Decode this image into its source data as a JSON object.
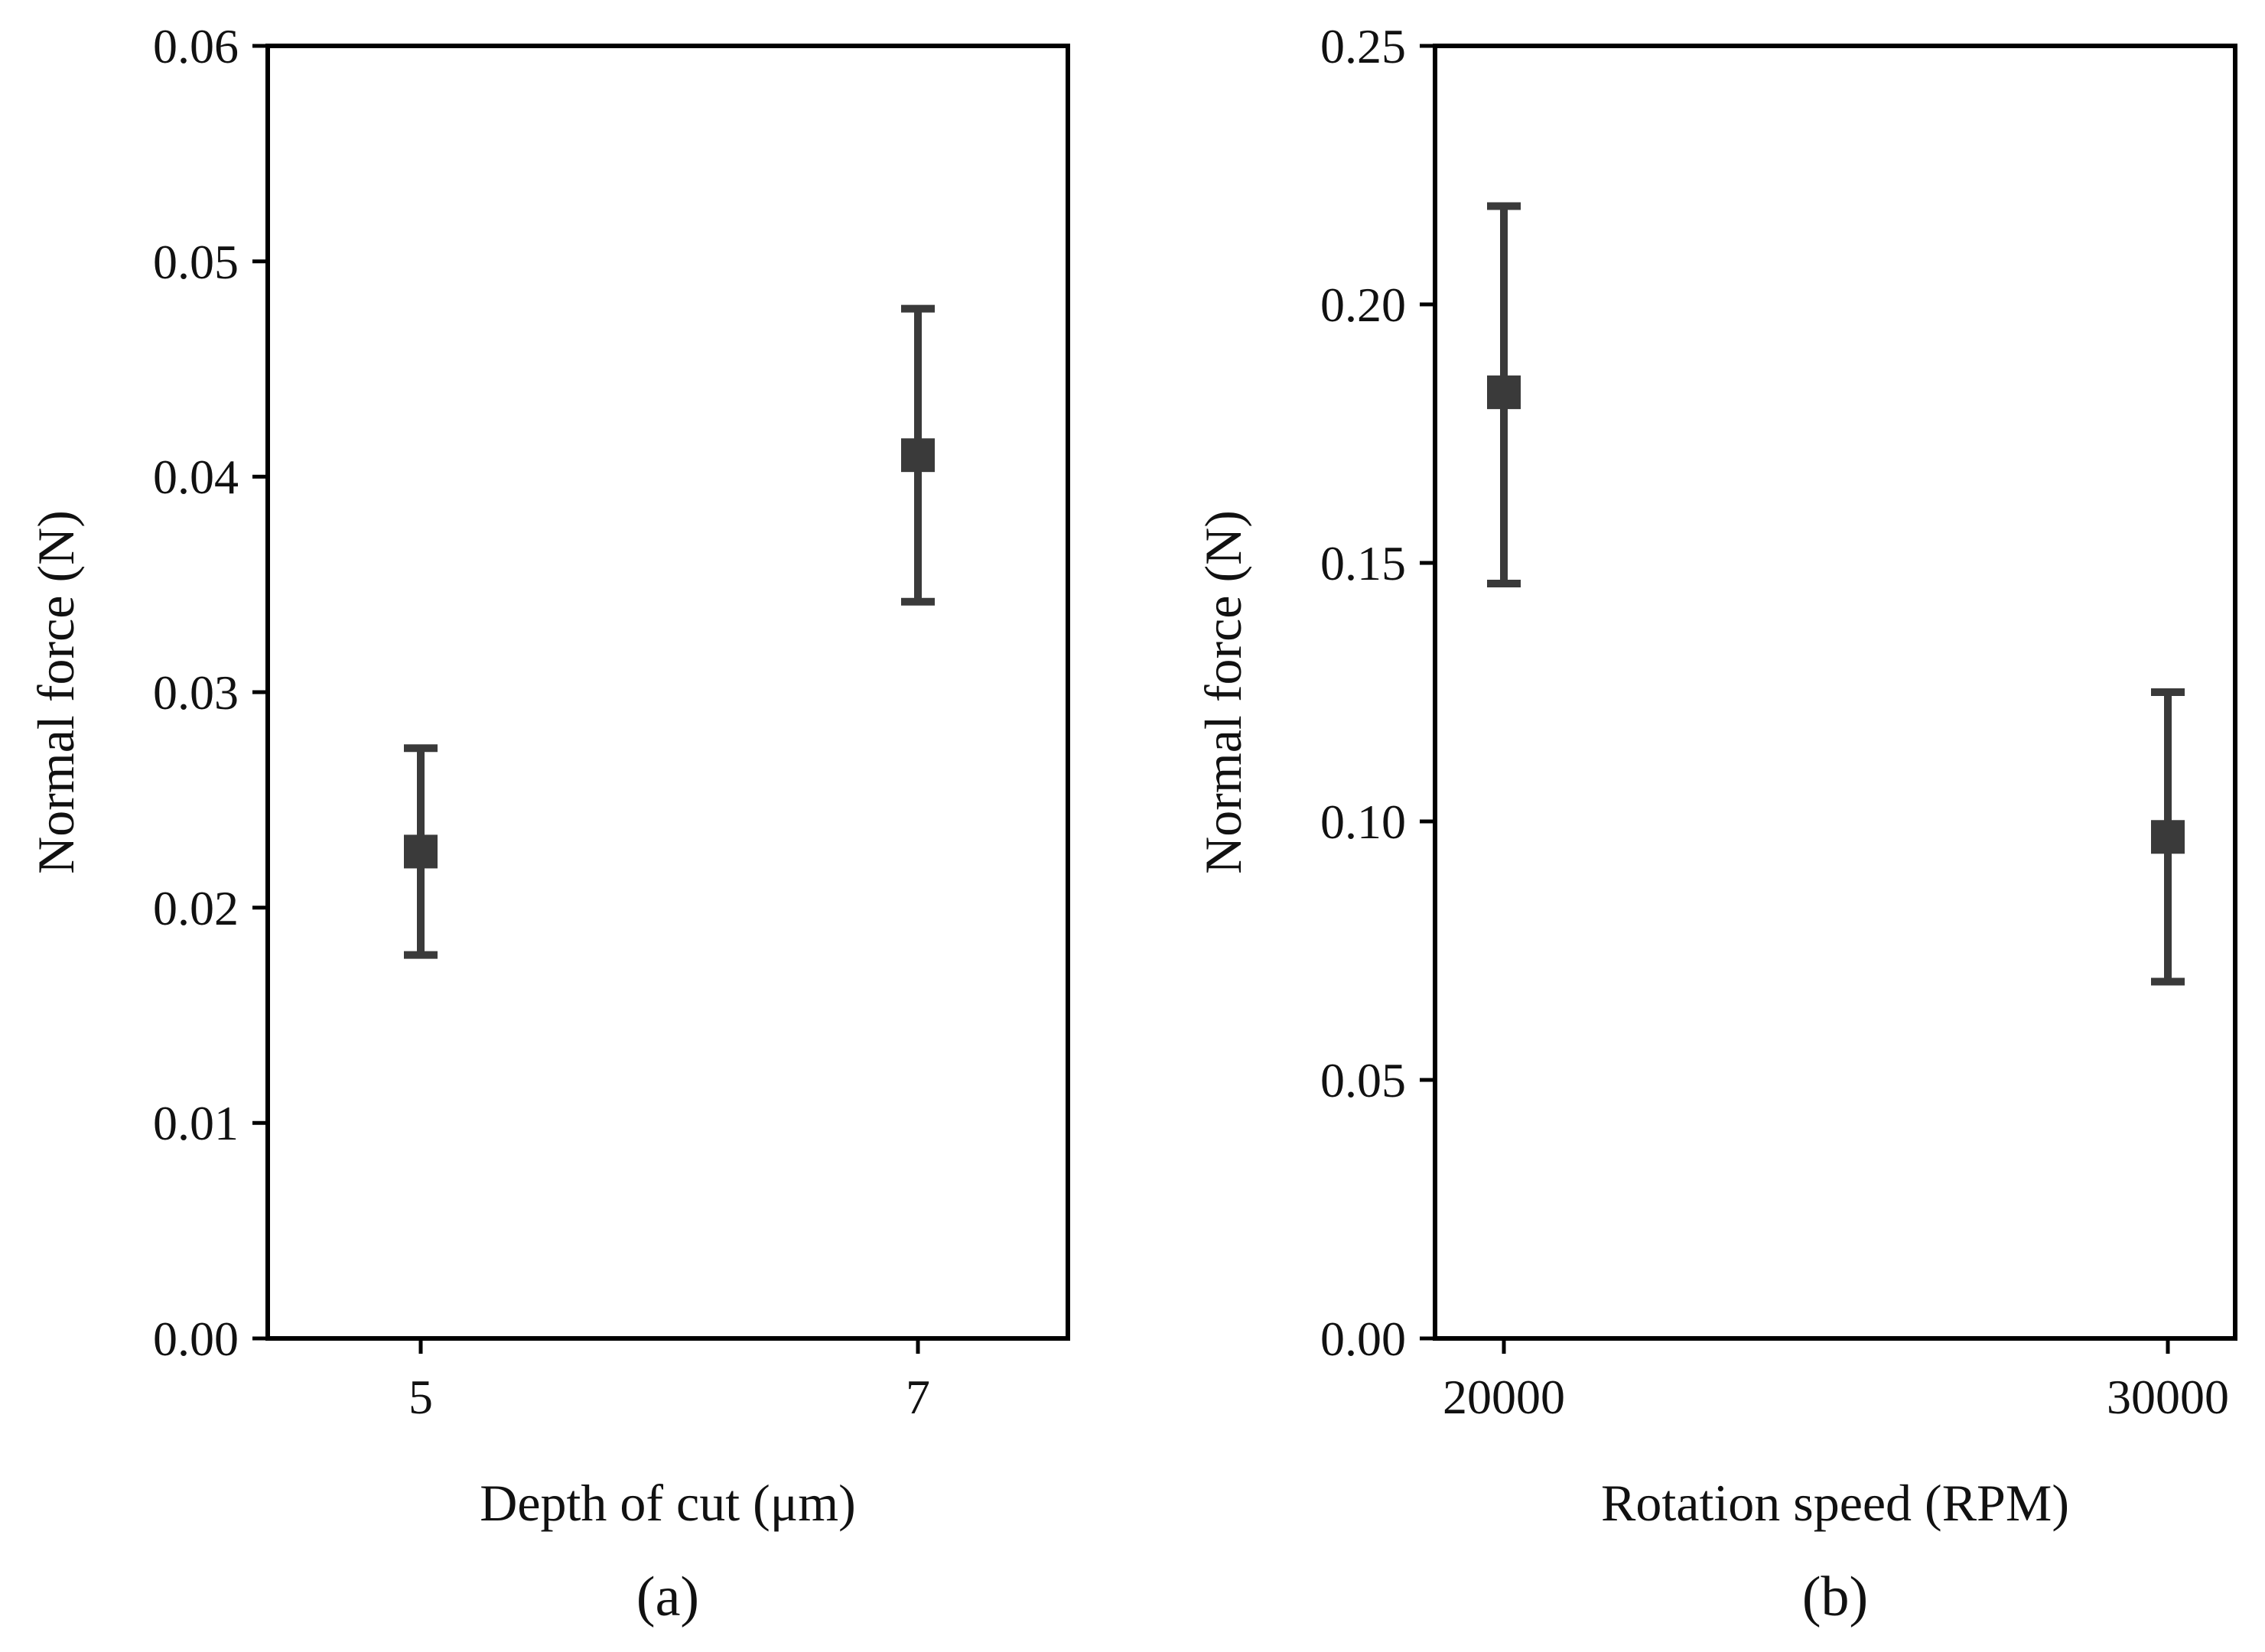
{
  "chart_data": [
    {
      "type": "scatter",
      "panel_label": "(a)",
      "xlabel": "Depth of cut (μm)",
      "ylabel": "Normal force (N)",
      "categories": [
        "5",
        "7"
      ],
      "values": [
        0.0226,
        0.041
      ],
      "error_lower": [
        0.0178,
        0.0342
      ],
      "error_upper": [
        0.0274,
        0.0478
      ],
      "yticks": [
        "0.00",
        "0.01",
        "0.02",
        "0.03",
        "0.04",
        "0.05",
        "0.06"
      ],
      "ylim": [
        0,
        0.06
      ],
      "grid": false,
      "colors": {
        "marker": "#3a3a3a",
        "axis": "#000000"
      }
    },
    {
      "type": "scatter",
      "panel_label": "(b)",
      "xlabel": "Rotation speed (RPM)",
      "ylabel": "Normal force (N)",
      "categories": [
        "20000",
        "30000"
      ],
      "values": [
        0.183,
        0.097
      ],
      "error_lower": [
        0.146,
        0.069
      ],
      "error_upper": [
        0.219,
        0.125
      ],
      "yticks": [
        "0.00",
        "0.05",
        "0.10",
        "0.15",
        "0.20",
        "0.25"
      ],
      "ylim": [
        0,
        0.25
      ],
      "grid": false,
      "colors": {
        "marker": "#3a3a3a",
        "axis": "#000000"
      }
    }
  ]
}
